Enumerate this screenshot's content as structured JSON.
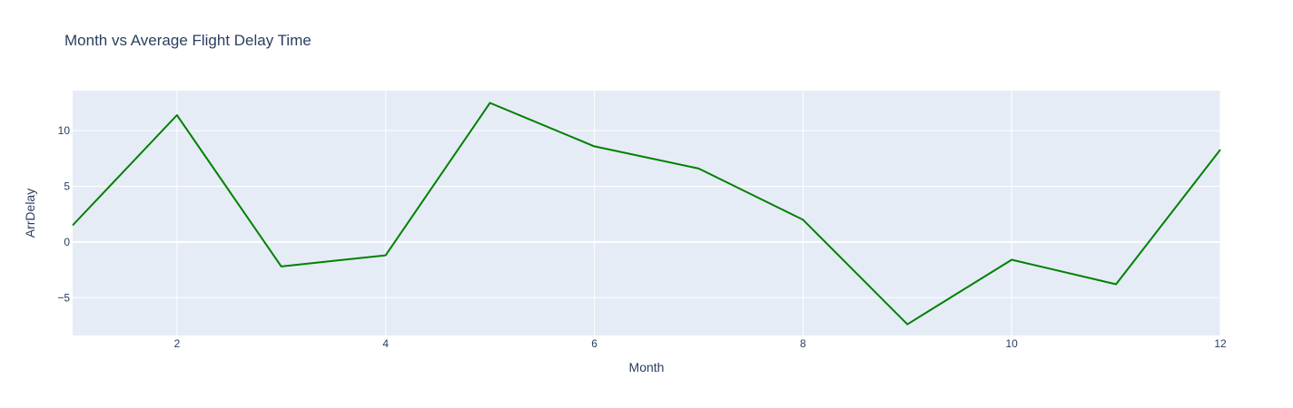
{
  "chart_data": {
    "type": "line",
    "title": "Month vs Average Flight Delay Time",
    "xlabel": "Month",
    "ylabel": "ArrDelay",
    "xlim": [
      1,
      12
    ],
    "ylim": [
      -8.4,
      13.6
    ],
    "x_ticks": [
      2,
      4,
      6,
      8,
      10,
      12
    ],
    "y_ticks": [
      -5,
      0,
      5,
      10
    ],
    "grid": true,
    "series": [
      {
        "color": "#008000",
        "x": [
          1,
          2,
          3,
          4,
          5,
          6,
          7,
          8,
          9,
          10,
          11,
          12
        ],
        "y": [
          1.5,
          11.4,
          -2.2,
          -1.2,
          12.5,
          8.6,
          6.6,
          2.0,
          -7.4,
          -1.6,
          -3.8,
          8.3
        ]
      }
    ]
  },
  "colors": {
    "plot_background": "#e5ecf6",
    "text": "#2a3f5f",
    "line": "#008000"
  }
}
